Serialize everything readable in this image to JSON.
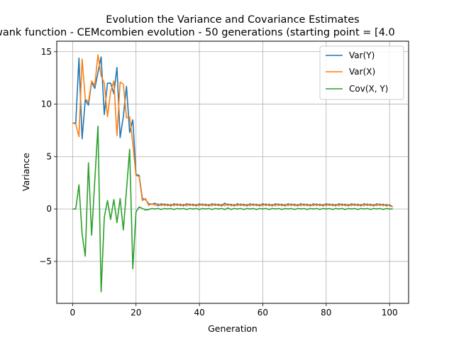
{
  "chart_data": {
    "type": "line",
    "title": "Evolution the Variance and Covariance Estimates",
    "subtitle": "wank function - CEMcombien evolution - 50 generations (starting point = [4.0",
    "xlabel": "Generation",
    "ylabel": "Variance",
    "xlim": [
      -5,
      106
    ],
    "ylim": [
      -9,
      16
    ],
    "xticks": [
      0,
      20,
      40,
      60,
      80,
      100
    ],
    "yticks": [
      -5,
      0,
      5,
      10,
      15
    ],
    "grid": true,
    "legend_position": "upper right",
    "series": [
      {
        "name": "Var(Y)",
        "color": "#1f77b4",
        "x": [
          0,
          1,
          2,
          3,
          4,
          5,
          6,
          7,
          8,
          9,
          10,
          11,
          12,
          13,
          14,
          15,
          16,
          17,
          18,
          19,
          20,
          21,
          22,
          23,
          24,
          25,
          26,
          27,
          28,
          29,
          30,
          31,
          32,
          33,
          34,
          35,
          36,
          37,
          38,
          39,
          40,
          41,
          42,
          43,
          44,
          45,
          46,
          47,
          48,
          49,
          50,
          51,
          52,
          53,
          54,
          55,
          56,
          57,
          58,
          59,
          60,
          61,
          62,
          63,
          64,
          65,
          66,
          67,
          68,
          69,
          70,
          71,
          72,
          73,
          74,
          75,
          76,
          77,
          78,
          79,
          80,
          81,
          82,
          83,
          84,
          85,
          86,
          87,
          88,
          89,
          90,
          91,
          92,
          93,
          94,
          95,
          96,
          97,
          98,
          99,
          100,
          101
        ],
        "values": [
          8.2,
          8.2,
          14.4,
          6.7,
          10.4,
          9.9,
          12.1,
          11.5,
          13.0,
          14.5,
          9.0,
          12.0,
          12.0,
          11.0,
          13.5,
          6.8,
          8.8,
          11.7,
          7.3,
          8.5,
          3.3,
          3.2,
          1.0,
          0.9,
          0.5,
          0.45,
          0.55,
          0.3,
          0.5,
          0.35,
          0.45,
          0.3,
          0.5,
          0.35,
          0.45,
          0.3,
          0.5,
          0.35,
          0.45,
          0.3,
          0.5,
          0.35,
          0.45,
          0.3,
          0.5,
          0.35,
          0.45,
          0.3,
          0.55,
          0.35,
          0.45,
          0.3,
          0.5,
          0.35,
          0.45,
          0.3,
          0.5,
          0.35,
          0.45,
          0.3,
          0.5,
          0.35,
          0.45,
          0.3,
          0.5,
          0.35,
          0.45,
          0.3,
          0.5,
          0.35,
          0.45,
          0.3,
          0.5,
          0.35,
          0.45,
          0.3,
          0.5,
          0.35,
          0.45,
          0.3,
          0.5,
          0.35,
          0.45,
          0.3,
          0.5,
          0.35,
          0.45,
          0.3,
          0.5,
          0.35,
          0.45,
          0.3,
          0.5,
          0.35,
          0.45,
          0.3,
          0.5,
          0.35,
          0.45,
          0.3,
          0.4,
          0.2
        ]
      },
      {
        "name": "Var(X)",
        "color": "#ff7f0e",
        "x": [
          0,
          1,
          2,
          3,
          4,
          5,
          6,
          7,
          8,
          9,
          10,
          11,
          12,
          13,
          14,
          15,
          16,
          17,
          18,
          19,
          20,
          21,
          22,
          23,
          24,
          25,
          26,
          27,
          28,
          29,
          30,
          31,
          32,
          33,
          34,
          35,
          36,
          37,
          38,
          39,
          40,
          41,
          42,
          43,
          44,
          45,
          46,
          47,
          48,
          49,
          50,
          51,
          52,
          53,
          54,
          55,
          56,
          57,
          58,
          59,
          60,
          61,
          62,
          63,
          64,
          65,
          66,
          67,
          68,
          69,
          70,
          71,
          72,
          73,
          74,
          75,
          76,
          77,
          78,
          79,
          80,
          81,
          82,
          83,
          84,
          85,
          86,
          87,
          88,
          89,
          90,
          91,
          92,
          93,
          94,
          95,
          96,
          97,
          98,
          99,
          100,
          101
        ],
        "values": [
          8.2,
          8.1,
          6.9,
          14.3,
          10.5,
          10.2,
          12.2,
          11.8,
          14.7,
          12.7,
          12.0,
          8.8,
          11.2,
          12.2,
          7.0,
          12.1,
          11.9,
          8.7,
          8.8,
          6.2,
          3.2,
          3.1,
          0.8,
          1.0,
          0.35,
          0.5,
          0.35,
          0.5,
          0.3,
          0.5,
          0.3,
          0.45,
          0.3,
          0.5,
          0.3,
          0.45,
          0.3,
          0.5,
          0.3,
          0.45,
          0.3,
          0.5,
          0.3,
          0.45,
          0.3,
          0.5,
          0.3,
          0.45,
          0.3,
          0.5,
          0.3,
          0.45,
          0.3,
          0.5,
          0.3,
          0.45,
          0.3,
          0.5,
          0.3,
          0.45,
          0.3,
          0.5,
          0.3,
          0.45,
          0.3,
          0.5,
          0.3,
          0.45,
          0.3,
          0.5,
          0.3,
          0.45,
          0.3,
          0.5,
          0.3,
          0.45,
          0.3,
          0.5,
          0.3,
          0.45,
          0.3,
          0.5,
          0.3,
          0.45,
          0.3,
          0.5,
          0.3,
          0.45,
          0.3,
          0.5,
          0.3,
          0.45,
          0.3,
          0.5,
          0.3,
          0.45,
          0.3,
          0.5,
          0.3,
          0.45,
          0.3,
          0.2
        ]
      },
      {
        "name": "Cov(X, Y)",
        "color": "#2ca02c",
        "x": [
          0,
          1,
          2,
          3,
          4,
          5,
          6,
          7,
          8,
          9,
          10,
          11,
          12,
          13,
          14,
          15,
          16,
          17,
          18,
          19,
          20,
          21,
          22,
          23,
          24,
          25,
          26,
          27,
          28,
          29,
          30,
          31,
          32,
          33,
          34,
          35,
          36,
          37,
          38,
          39,
          40,
          41,
          42,
          43,
          44,
          45,
          46,
          47,
          48,
          49,
          50,
          51,
          52,
          53,
          54,
          55,
          56,
          57,
          58,
          59,
          60,
          61,
          62,
          63,
          64,
          65,
          66,
          67,
          68,
          69,
          70,
          71,
          72,
          73,
          74,
          75,
          76,
          77,
          78,
          79,
          80,
          81,
          82,
          83,
          84,
          85,
          86,
          87,
          88,
          89,
          90,
          91,
          92,
          93,
          94,
          95,
          96,
          97,
          98,
          99,
          100,
          101
        ],
        "values": [
          0.0,
          0.0,
          2.3,
          -2.4,
          -4.5,
          4.4,
          -2.5,
          2.7,
          7.9,
          -7.9,
          -0.8,
          0.8,
          -1.0,
          0.9,
          -1.3,
          1.0,
          -2.0,
          1.8,
          5.7,
          -5.7,
          -0.3,
          0.2,
          0.05,
          -0.1,
          -0.05,
          0.05,
          0.0,
          0.05,
          -0.05,
          0.05,
          0.0,
          0.05,
          -0.05,
          0.05,
          0.0,
          0.05,
          -0.05,
          0.05,
          0.0,
          0.05,
          -0.05,
          0.05,
          0.0,
          0.05,
          -0.05,
          0.05,
          0.0,
          0.05,
          -0.05,
          0.1,
          -0.05,
          0.05,
          0.0,
          0.05,
          -0.05,
          0.05,
          0.0,
          0.05,
          -0.05,
          0.05,
          0.0,
          0.05,
          -0.05,
          0.05,
          0.0,
          0.05,
          -0.05,
          0.05,
          0.0,
          0.05,
          -0.05,
          0.05,
          0.0,
          0.05,
          -0.05,
          0.05,
          0.0,
          0.05,
          -0.05,
          0.05,
          0.0,
          0.05,
          -0.05,
          0.05,
          0.0,
          0.05,
          -0.05,
          0.05,
          0.0,
          0.05,
          -0.05,
          0.05,
          0.0,
          0.05,
          -0.05,
          0.05,
          0.0,
          0.05,
          -0.05,
          0.05,
          0.0,
          0.0
        ]
      }
    ]
  }
}
